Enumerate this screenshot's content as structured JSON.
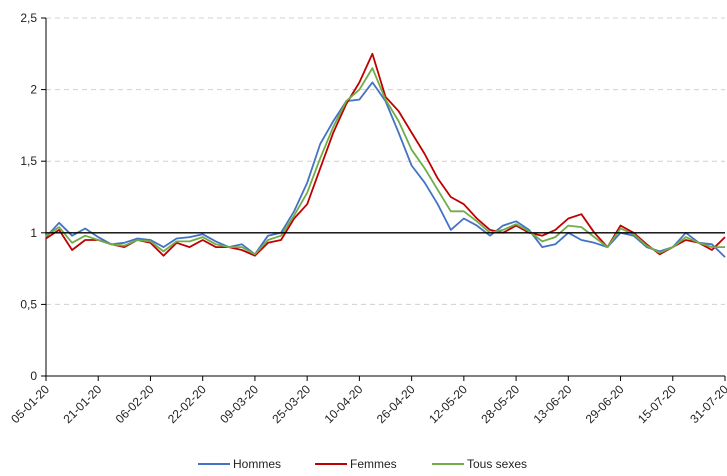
{
  "chart_data": {
    "type": "line",
    "title": "",
    "xlabel": "",
    "ylabel": "",
    "ylim": [
      0,
      2.5
    ],
    "yticks": [
      0,
      0.5,
      1,
      1.5,
      2,
      2.5
    ],
    "ytick_labels": [
      "0",
      "0,5",
      "1",
      "1,5",
      "2",
      "2,5"
    ],
    "x_start": "05-01-20",
    "x_end": "31-07-20",
    "xtick_labels": [
      "05-01-20",
      "21-01-20",
      "06-02-20",
      "22-02-20",
      "09-03-20",
      "25-03-20",
      "10-04-20",
      "26-04-20",
      "12-05-20",
      "28-05-20",
      "13-06-20",
      "29-06-20",
      "15-07-20",
      "31-07-20"
    ],
    "grid": "horizontal-dashed",
    "reference_line": 1,
    "legend_position": "bottom",
    "series": [
      {
        "name": "Hommes",
        "color": "#4472c4",
        "points": [
          [
            "05-01-20",
            0.97
          ],
          [
            "09-01-20",
            1.07
          ],
          [
            "13-01-20",
            0.98
          ],
          [
            "17-01-20",
            1.03
          ],
          [
            "21-01-20",
            0.97
          ],
          [
            "25-01-20",
            0.92
          ],
          [
            "29-01-20",
            0.93
          ],
          [
            "02-02-20",
            0.96
          ],
          [
            "06-02-20",
            0.95
          ],
          [
            "10-02-20",
            0.9
          ],
          [
            "14-02-20",
            0.96
          ],
          [
            "18-02-20",
            0.97
          ],
          [
            "22-02-20",
            0.99
          ],
          [
            "26-02-20",
            0.94
          ],
          [
            "01-03-20",
            0.9
          ],
          [
            "05-03-20",
            0.92
          ],
          [
            "09-03-20",
            0.85
          ],
          [
            "13-03-20",
            0.98
          ],
          [
            "17-03-20",
            1.0
          ],
          [
            "21-03-20",
            1.15
          ],
          [
            "25-03-20",
            1.35
          ],
          [
            "29-03-20",
            1.62
          ],
          [
            "02-04-20",
            1.78
          ],
          [
            "06-04-20",
            1.92
          ],
          [
            "10-04-20",
            1.93
          ],
          [
            "14-04-20",
            2.05
          ],
          [
            "18-04-20",
            1.92
          ],
          [
            "22-04-20",
            1.7
          ],
          [
            "26-04-20",
            1.47
          ],
          [
            "30-04-20",
            1.35
          ],
          [
            "04-05-20",
            1.2
          ],
          [
            "08-05-20",
            1.02
          ],
          [
            "12-05-20",
            1.1
          ],
          [
            "16-05-20",
            1.05
          ],
          [
            "20-05-20",
            0.98
          ],
          [
            "24-05-20",
            1.05
          ],
          [
            "28-05-20",
            1.08
          ],
          [
            "01-06-20",
            1.02
          ],
          [
            "05-06-20",
            0.9
          ],
          [
            "09-06-20",
            0.92
          ],
          [
            "13-06-20",
            1.0
          ],
          [
            "17-06-20",
            0.95
          ],
          [
            "21-06-20",
            0.93
          ],
          [
            "25-06-20",
            0.9
          ],
          [
            "29-06-20",
            1.0
          ],
          [
            "03-07-20",
            0.98
          ],
          [
            "07-07-20",
            0.9
          ],
          [
            "11-07-20",
            0.87
          ],
          [
            "15-07-20",
            0.9
          ],
          [
            "19-07-20",
            1.0
          ],
          [
            "23-07-20",
            0.93
          ],
          [
            "27-07-20",
            0.92
          ],
          [
            "31-07-20",
            0.83
          ]
        ]
      },
      {
        "name": "Femmes",
        "color": "#c00000",
        "points": [
          [
            "05-01-20",
            0.96
          ],
          [
            "09-01-20",
            1.02
          ],
          [
            "13-01-20",
            0.88
          ],
          [
            "17-01-20",
            0.95
          ],
          [
            "21-01-20",
            0.95
          ],
          [
            "25-01-20",
            0.92
          ],
          [
            "29-01-20",
            0.9
          ],
          [
            "02-02-20",
            0.95
          ],
          [
            "06-02-20",
            0.93
          ],
          [
            "10-02-20",
            0.84
          ],
          [
            "14-02-20",
            0.93
          ],
          [
            "18-02-20",
            0.9
          ],
          [
            "22-02-20",
            0.95
          ],
          [
            "26-02-20",
            0.9
          ],
          [
            "01-03-20",
            0.9
          ],
          [
            "05-03-20",
            0.88
          ],
          [
            "09-03-20",
            0.84
          ],
          [
            "13-03-20",
            0.93
          ],
          [
            "17-03-20",
            0.95
          ],
          [
            "21-03-20",
            1.1
          ],
          [
            "25-03-20",
            1.2
          ],
          [
            "29-03-20",
            1.45
          ],
          [
            "02-04-20",
            1.7
          ],
          [
            "06-04-20",
            1.9
          ],
          [
            "10-04-20",
            2.05
          ],
          [
            "14-04-20",
            2.25
          ],
          [
            "18-04-20",
            1.95
          ],
          [
            "22-04-20",
            1.85
          ],
          [
            "26-04-20",
            1.7
          ],
          [
            "30-04-20",
            1.55
          ],
          [
            "04-05-20",
            1.38
          ],
          [
            "08-05-20",
            1.25
          ],
          [
            "12-05-20",
            1.2
          ],
          [
            "16-05-20",
            1.1
          ],
          [
            "20-05-20",
            1.02
          ],
          [
            "24-05-20",
            1.0
          ],
          [
            "28-05-20",
            1.05
          ],
          [
            "01-06-20",
            1.0
          ],
          [
            "05-06-20",
            0.98
          ],
          [
            "09-06-20",
            1.02
          ],
          [
            "13-06-20",
            1.1
          ],
          [
            "17-06-20",
            1.13
          ],
          [
            "21-06-20",
            1.0
          ],
          [
            "25-06-20",
            0.9
          ],
          [
            "29-06-20",
            1.05
          ],
          [
            "03-07-20",
            1.0
          ],
          [
            "07-07-20",
            0.92
          ],
          [
            "11-07-20",
            0.85
          ],
          [
            "15-07-20",
            0.9
          ],
          [
            "19-07-20",
            0.95
          ],
          [
            "23-07-20",
            0.93
          ],
          [
            "27-07-20",
            0.88
          ],
          [
            "31-07-20",
            0.97
          ]
        ]
      },
      {
        "name": "Tous sexes",
        "color": "#70ad47",
        "points": [
          [
            "05-01-20",
            0.98
          ],
          [
            "09-01-20",
            1.04
          ],
          [
            "13-01-20",
            0.93
          ],
          [
            "17-01-20",
            0.98
          ],
          [
            "21-01-20",
            0.95
          ],
          [
            "25-01-20",
            0.92
          ],
          [
            "29-01-20",
            0.91
          ],
          [
            "02-02-20",
            0.95
          ],
          [
            "06-02-20",
            0.94
          ],
          [
            "10-02-20",
            0.87
          ],
          [
            "14-02-20",
            0.94
          ],
          [
            "18-02-20",
            0.94
          ],
          [
            "22-02-20",
            0.97
          ],
          [
            "26-02-20",
            0.92
          ],
          [
            "01-03-20",
            0.9
          ],
          [
            "05-03-20",
            0.9
          ],
          [
            "09-03-20",
            0.85
          ],
          [
            "13-03-20",
            0.95
          ],
          [
            "17-03-20",
            0.98
          ],
          [
            "21-03-20",
            1.12
          ],
          [
            "25-03-20",
            1.28
          ],
          [
            "29-03-20",
            1.52
          ],
          [
            "02-04-20",
            1.74
          ],
          [
            "06-04-20",
            1.92
          ],
          [
            "10-04-20",
            2.0
          ],
          [
            "14-04-20",
            2.15
          ],
          [
            "18-04-20",
            1.93
          ],
          [
            "22-04-20",
            1.78
          ],
          [
            "26-04-20",
            1.58
          ],
          [
            "30-04-20",
            1.45
          ],
          [
            "04-05-20",
            1.3
          ],
          [
            "08-05-20",
            1.15
          ],
          [
            "12-05-20",
            1.15
          ],
          [
            "16-05-20",
            1.08
          ],
          [
            "20-05-20",
            1.0
          ],
          [
            "24-05-20",
            1.02
          ],
          [
            "28-05-20",
            1.06
          ],
          [
            "01-06-20",
            1.01
          ],
          [
            "05-06-20",
            0.94
          ],
          [
            "09-06-20",
            0.97
          ],
          [
            "13-06-20",
            1.05
          ],
          [
            "17-06-20",
            1.04
          ],
          [
            "21-06-20",
            0.97
          ],
          [
            "25-06-20",
            0.9
          ],
          [
            "29-06-20",
            1.03
          ],
          [
            "03-07-20",
            0.99
          ],
          [
            "07-07-20",
            0.91
          ],
          [
            "11-07-20",
            0.86
          ],
          [
            "15-07-20",
            0.9
          ],
          [
            "19-07-20",
            0.97
          ],
          [
            "23-07-20",
            0.93
          ],
          [
            "27-07-20",
            0.9
          ],
          [
            "31-07-20",
            0.9
          ]
        ]
      }
    ]
  }
}
